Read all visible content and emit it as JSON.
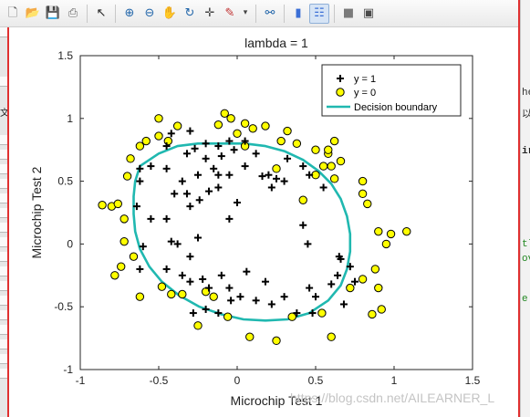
{
  "toolbar": {
    "icons": [
      "new-figure-icon",
      "open-file-icon",
      "save-icon",
      "print-icon",
      "pointer-icon",
      "zoom-in-icon",
      "zoom-out-icon",
      "pan-hand-icon",
      "rotate-3d-icon",
      "data-cursor-icon",
      "brush-icon",
      "link-plot-icon",
      "colorbar-icon",
      "legend-icon",
      "hide-plot-tools-icon",
      "show-plot-tools-icon"
    ]
  },
  "side_text": {
    "left": [
      "文"
    ],
    "right": [
      "he",
      "以",
      "ir",
      "tl",
      "ov",
      "e"
    ]
  },
  "watermark": "https://blog.csdn.net/AILEARNER_L",
  "colors": {
    "marker_pos": "#000000",
    "marker_neg_fill": "#ffff00",
    "marker_neg_edge": "#000000",
    "boundary": "#20b8b0"
  },
  "chart_data": {
    "type": "scatter",
    "title": "lambda = 1",
    "xlabel": "Microchip Test 1",
    "ylabel": "Microchip Test 2",
    "xlim": [
      -1,
      1.5
    ],
    "ylim": [
      -1,
      1.5
    ],
    "xticks": [
      -1,
      -0.5,
      0,
      0.5,
      1,
      1.5
    ],
    "yticks": [
      -1,
      -0.5,
      0,
      0.5,
      1,
      1.5
    ],
    "xtick_labels": [
      "-1",
      "-0.5",
      "0",
      "0.5",
      "1",
      "1.5"
    ],
    "ytick_labels": [
      "-1",
      "-0.5",
      "0",
      "0.5",
      "1",
      "1.5"
    ],
    "legend": {
      "position": "top-right",
      "entries": [
        "y = 1",
        "y = 0",
        "Decision boundary"
      ]
    },
    "series": [
      {
        "name": "y = 1",
        "marker": "plus",
        "points": [
          [
            -0.27,
            0.76
          ],
          [
            -0.2,
            0.8
          ],
          [
            -0.32,
            0.72
          ],
          [
            -0.12,
            0.78
          ],
          [
            -0.05,
            0.82
          ],
          [
            0.05,
            0.82
          ],
          [
            -0.2,
            0.68
          ],
          [
            -0.1,
            0.7
          ],
          [
            -0.15,
            0.6
          ],
          [
            -0.25,
            0.55
          ],
          [
            -0.35,
            0.5
          ],
          [
            -0.45,
            0.6
          ],
          [
            -0.55,
            0.62
          ],
          [
            -0.62,
            0.6
          ],
          [
            -0.62,
            0.5
          ],
          [
            -0.64,
            0.3
          ],
          [
            -0.55,
            0.2
          ],
          [
            -0.45,
            0.2
          ],
          [
            -0.3,
            0.3
          ],
          [
            -0.4,
            0.4
          ],
          [
            -0.24,
            0.35
          ],
          [
            -0.12,
            0.45
          ],
          [
            -0.05,
            0.55
          ],
          [
            -0.02,
            0.75
          ],
          [
            0.05,
            0.62
          ],
          [
            0.12,
            0.72
          ],
          [
            0.2,
            0.55
          ],
          [
            0.25,
            0.52
          ],
          [
            0.3,
            0.5
          ],
          [
            0.32,
            0.68
          ],
          [
            0.42,
            0.62
          ],
          [
            0.46,
            0.55
          ],
          [
            0.55,
            0.45
          ],
          [
            -0.45,
            0.78
          ],
          [
            -0.42,
            0.88
          ],
          [
            -0.3,
            0.9
          ],
          [
            0.0,
            0.33
          ],
          [
            0.42,
            0.15
          ],
          [
            0.45,
            0.0
          ],
          [
            -0.05,
            0.2
          ],
          [
            -0.25,
            0.05
          ],
          [
            -0.3,
            -0.1
          ],
          [
            -0.38,
            0.0
          ],
          [
            -0.42,
            0.02
          ],
          [
            -0.6,
            -0.02
          ],
          [
            -0.62,
            -0.2
          ],
          [
            -0.45,
            -0.2
          ],
          [
            -0.35,
            -0.25
          ],
          [
            -0.3,
            -0.3
          ],
          [
            -0.22,
            -0.28
          ],
          [
            -0.1,
            -0.25
          ],
          [
            -0.05,
            -0.35
          ],
          [
            0.06,
            -0.22
          ],
          [
            0.18,
            -0.3
          ],
          [
            0.3,
            -0.42
          ],
          [
            0.38,
            -0.55
          ],
          [
            0.46,
            -0.35
          ],
          [
            0.48,
            -0.55
          ],
          [
            0.5,
            -0.42
          ],
          [
            0.6,
            -0.32
          ],
          [
            0.64,
            -0.25
          ],
          [
            0.66,
            -0.12
          ],
          [
            0.72,
            -0.18
          ],
          [
            0.68,
            -0.48
          ],
          [
            0.22,
            -0.48
          ],
          [
            0.02,
            -0.42
          ],
          [
            -0.12,
            -0.55
          ],
          [
            -0.2,
            -0.52
          ],
          [
            -0.28,
            -0.55
          ],
          [
            -0.04,
            -0.45
          ],
          [
            -0.18,
            -0.35
          ],
          [
            0.12,
            -0.45
          ],
          [
            0.65,
            -0.1
          ],
          [
            0.75,
            -0.3
          ],
          [
            -0.18,
            0.42
          ],
          [
            0.16,
            0.54
          ],
          [
            0.22,
            0.45
          ],
          [
            -0.12,
            0.55
          ],
          [
            -0.32,
            0.4
          ]
        ]
      },
      {
        "name": "y = 0",
        "marker": "circle",
        "points": [
          [
            -0.5,
            1.0
          ],
          [
            -0.38,
            0.94
          ],
          [
            -0.12,
            0.95
          ],
          [
            -0.08,
            1.04
          ],
          [
            -0.04,
            1.0
          ],
          [
            0.05,
            0.96
          ],
          [
            0.1,
            0.92
          ],
          [
            0.18,
            0.94
          ],
          [
            0.32,
            0.9
          ],
          [
            -0.5,
            0.86
          ],
          [
            -0.44,
            0.82
          ],
          [
            -0.58,
            0.82
          ],
          [
            -0.62,
            0.78
          ],
          [
            -0.68,
            0.68
          ],
          [
            -0.7,
            0.54
          ],
          [
            -0.8,
            0.3
          ],
          [
            -0.76,
            0.32
          ],
          [
            -0.86,
            0.31
          ],
          [
            -0.72,
            0.2
          ],
          [
            -0.72,
            0.02
          ],
          [
            -0.66,
            -0.1
          ],
          [
            -0.74,
            -0.18
          ],
          [
            -0.78,
            -0.25
          ],
          [
            -0.62,
            -0.42
          ],
          [
            -0.48,
            -0.34
          ],
          [
            -0.42,
            -0.4
          ],
          [
            -0.35,
            -0.4
          ],
          [
            -0.2,
            -0.38
          ],
          [
            -0.15,
            -0.42
          ],
          [
            -0.25,
            -0.65
          ],
          [
            -0.06,
            -0.58
          ],
          [
            0.08,
            -0.74
          ],
          [
            0.25,
            -0.77
          ],
          [
            0.35,
            -0.58
          ],
          [
            0.54,
            -0.55
          ],
          [
            0.6,
            -0.74
          ],
          [
            0.72,
            -0.35
          ],
          [
            0.8,
            -0.28
          ],
          [
            0.86,
            -0.56
          ],
          [
            0.92,
            -0.52
          ],
          [
            0.9,
            -0.35
          ],
          [
            0.88,
            -0.2
          ],
          [
            0.95,
            0.0
          ],
          [
            0.98,
            0.08
          ],
          [
            1.08,
            0.1
          ],
          [
            0.83,
            0.32
          ],
          [
            0.8,
            0.4
          ],
          [
            0.62,
            0.52
          ],
          [
            0.6,
            0.62
          ],
          [
            0.66,
            0.66
          ],
          [
            0.58,
            0.72
          ],
          [
            0.5,
            0.75
          ],
          [
            0.55,
            0.62
          ],
          [
            0.28,
            0.82
          ],
          [
            0.38,
            0.8
          ],
          [
            0.25,
            0.6
          ],
          [
            0.62,
            0.82
          ],
          [
            0.58,
            0.75
          ],
          [
            0.8,
            0.5
          ],
          [
            0.9,
            0.1
          ],
          [
            0.0,
            0.88
          ],
          [
            0.05,
            0.78
          ],
          [
            0.42,
            0.35
          ],
          [
            0.5,
            0.55
          ]
        ]
      }
    ],
    "decision_boundary": {
      "name": "Decision boundary",
      "points": [
        [
          -0.62,
          0.62
        ],
        [
          -0.5,
          0.72
        ],
        [
          -0.38,
          0.78
        ],
        [
          -0.25,
          0.8
        ],
        [
          -0.1,
          0.8
        ],
        [
          0.05,
          0.8
        ],
        [
          0.18,
          0.78
        ],
        [
          0.3,
          0.74
        ],
        [
          0.42,
          0.67
        ],
        [
          0.52,
          0.58
        ],
        [
          0.6,
          0.48
        ],
        [
          0.66,
          0.36
        ],
        [
          0.7,
          0.22
        ],
        [
          0.72,
          0.08
        ],
        [
          0.72,
          -0.06
        ],
        [
          0.7,
          -0.2
        ],
        [
          0.66,
          -0.33
        ],
        [
          0.58,
          -0.45
        ],
        [
          0.46,
          -0.55
        ],
        [
          0.32,
          -0.6
        ],
        [
          0.18,
          -0.61
        ],
        [
          0.04,
          -0.6
        ],
        [
          -0.1,
          -0.56
        ],
        [
          -0.24,
          -0.5
        ],
        [
          -0.37,
          -0.41
        ],
        [
          -0.48,
          -0.3
        ],
        [
          -0.56,
          -0.18
        ],
        [
          -0.62,
          -0.04
        ],
        [
          -0.65,
          0.1
        ],
        [
          -0.66,
          0.24
        ],
        [
          -0.66,
          0.38
        ],
        [
          -0.65,
          0.5
        ],
        [
          -0.62,
          0.62
        ]
      ]
    }
  }
}
